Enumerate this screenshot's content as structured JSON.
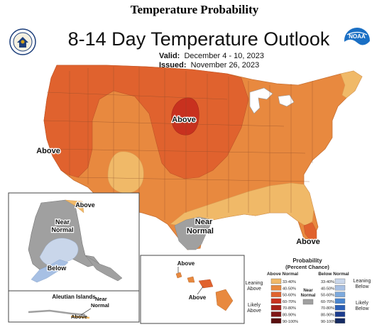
{
  "page_heading": "Temperature Probability",
  "map": {
    "title": "8-14 Day Temperature Outlook",
    "valid_label": "Valid:",
    "valid_dates": "December 4 - 10, 2023",
    "issued_label": "Issued:",
    "issued_date": "November 26, 2023"
  },
  "logos": {
    "left_icon": "department-of-commerce-seal-icon",
    "right_icon": "noaa-logo-icon",
    "right_text": "NOAA"
  },
  "region_labels": {
    "west_coast": "Above",
    "northern_plains": "Above",
    "gulf_texas_1": "Near",
    "gulf_texas_2": "Normal",
    "florida": "Above",
    "alaska_northeast": "Above",
    "alaska_near_1": "Near",
    "alaska_near_2": "Normal",
    "alaska_below": "Below",
    "hawaii_above_1": "Above",
    "hawaii_above_2": "Above",
    "aleutian_title": "Aleutian Islands",
    "aleutian_near_1": "Near",
    "aleutian_near_2": "Normal",
    "aleutian_above": "Above"
  },
  "legend": {
    "title_1": "Probability",
    "title_2": "(Percent Chance)",
    "above_header": "Above Normal",
    "below_header": "Below Normal",
    "near_header_1": "Near",
    "near_header_2": "Normal",
    "leaning_above_1": "Leaning",
    "leaning_above_2": "Above",
    "likely_above_1": "Likely",
    "likely_above_2": "Above",
    "leaning_below_1": "Leaning",
    "leaning_below_2": "Below",
    "likely_below_1": "Likely",
    "likely_below_2": "Below",
    "above_ranges": [
      "33-40%",
      "40-50%",
      "50-60%",
      "60-70%",
      "70-80%",
      "80-90%",
      "90-100%"
    ],
    "below_ranges": [
      "33-40%",
      "40-50%",
      "50-60%",
      "60-70%",
      "70-80%",
      "80-90%",
      "90-100%"
    ],
    "above_colors": [
      "#f0b968",
      "#e8893f",
      "#e0622e",
      "#c8311f",
      "#a52019",
      "#7f1414",
      "#5a0d0d"
    ],
    "below_colors": [
      "#c9d6ea",
      "#a7c0e4",
      "#7da9dc",
      "#4b86cf",
      "#2b5fb7",
      "#1c3d8e",
      "#142a63"
    ],
    "near_color": "#a0a0a0"
  },
  "colors": {
    "above_33_40": "#f0b968",
    "above_40_50": "#e8893f",
    "above_50_60": "#e0622e",
    "above_60_70": "#c8311f",
    "near_normal": "#a0a0a0",
    "below_33_40": "#c9d6ea",
    "below_40_50": "#a7c0e4"
  }
}
